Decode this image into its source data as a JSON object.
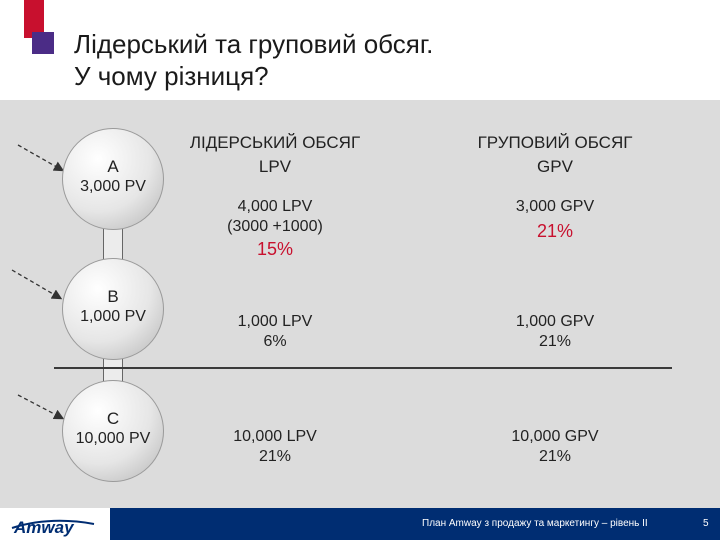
{
  "title": {
    "line1": "Лідерський та груповий обсяг.",
    "line2": "У чому різниця?"
  },
  "headers": {
    "leader": "ЛІДЕРСЬКИЙ ОБСЯГ",
    "leader_sub": "LPV",
    "group": "ГРУПОВИЙ ОБСЯГ",
    "group_sub": "GPV"
  },
  "nodes": [
    {
      "letter": "A",
      "pv": "3,000 PV"
    },
    {
      "letter": "B",
      "pv": "1,000 PV"
    },
    {
      "letter": "C",
      "pv": "10,000 PV"
    }
  ],
  "rows": [
    {
      "lpv": "4,000 LPV",
      "lpv_calc": "(3000 +1000)",
      "lpv_pct": "15%",
      "gpv": "3,000 GPV",
      "gpv_pct": "21%"
    },
    {
      "lpv": "1,000 LPV",
      "lpv_pct": "6%",
      "gpv": "1,000 GPV",
      "gpv_pct": "21%"
    },
    {
      "lpv": "10,000 LPV",
      "lpv_pct": "21%",
      "gpv": "10,000 GPV",
      "gpv_pct": "21%"
    }
  ],
  "footer": {
    "logo": "Amway",
    "text": "План Amway з продажу та маркетингу – рівень II",
    "page": "5"
  },
  "colors": {
    "accent_red": "#c8102e",
    "accent_purple": "#4b2c86",
    "footer_bar": "#002d72"
  }
}
